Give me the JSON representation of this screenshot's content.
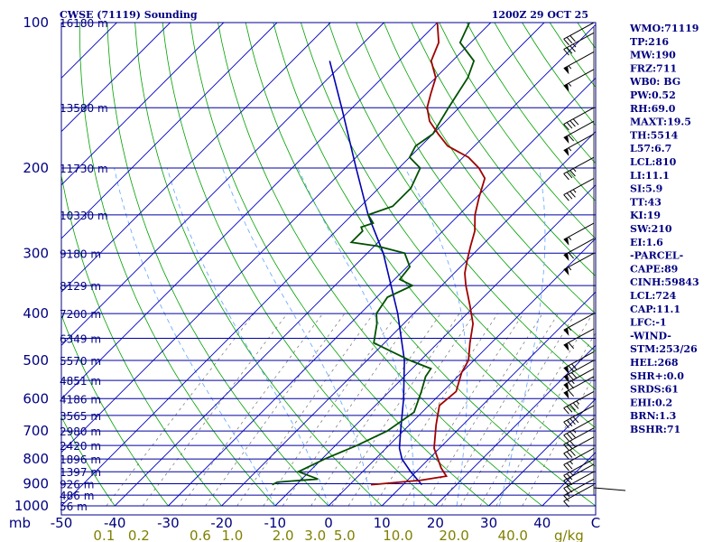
{
  "header": {
    "station": "CWSE (71119) Sounding",
    "time": "1200Z 29 OCT 25"
  },
  "chart_data": {
    "type": "skew-t log-p sounding",
    "pressure_axis": {
      "scale": "log",
      "range": [
        1000,
        100
      ],
      "ticks": [
        {
          "label": "100",
          "p": 100
        },
        {
          "label": "200",
          "p": 200
        },
        {
          "label": "300",
          "p": 300
        },
        {
          "label": "400",
          "p": 400
        },
        {
          "label": "500",
          "p": 500
        },
        {
          "label": "600",
          "p": 600
        },
        {
          "label": "700",
          "p": 700
        },
        {
          "label": "800",
          "p": 800
        },
        {
          "label": "900",
          "p": 900
        },
        {
          "label": "1000",
          "p": 1000
        },
        {
          "label": "mb",
          "p": 1000
        }
      ]
    },
    "temperature_axis": {
      "range": [
        -50,
        50
      ],
      "ticks": [
        {
          "label": "-50",
          "t": -50
        },
        {
          "label": "-40",
          "t": -40
        },
        {
          "label": "-30",
          "t": -30
        },
        {
          "label": "-20",
          "t": -20
        },
        {
          "label": "-10",
          "t": -10
        },
        {
          "label": "0",
          "t": 0
        },
        {
          "label": "10",
          "t": 10
        },
        {
          "label": "20",
          "t": 20
        },
        {
          "label": "30",
          "t": 30
        },
        {
          "label": "40",
          "t": 40
        },
        {
          "label": "C",
          "t": 50
        }
      ]
    },
    "mixing_ratio_labels": [
      {
        "label": "0.1",
        "t": -42
      },
      {
        "label": "0.2",
        "t": -35.5
      },
      {
        "label": "0.6",
        "t": -24
      },
      {
        "label": "1.0",
        "t": -18
      },
      {
        "label": "2.0",
        "t": -8.5
      },
      {
        "label": "3.0",
        "t": -2.5
      },
      {
        "label": "5.0",
        "t": 3
      },
      {
        "label": "10.0",
        "t": 13
      },
      {
        "label": "20.0",
        "t": 23.5
      },
      {
        "label": "40.0",
        "t": 34.5
      },
      {
        "label": "g/kg",
        "t": 45
      }
    ],
    "height_labels": [
      {
        "label": "16180 m",
        "p": 100
      },
      {
        "label": "13580 m",
        "p": 150
      },
      {
        "label": "11730 m",
        "p": 200
      },
      {
        "label": "10330 m",
        "p": 250
      },
      {
        "label": "9180 m",
        "p": 300
      },
      {
        "label": "8129 m",
        "p": 350
      },
      {
        "label": "7200 m",
        "p": 400
      },
      {
        "label": "6349 m",
        "p": 450
      },
      {
        "label": "5570 m",
        "p": 500
      },
      {
        "label": "4851 m",
        "p": 550
      },
      {
        "label": "4186 m",
        "p": 600
      },
      {
        "label": "3565 m",
        "p": 650
      },
      {
        "label": "2980 m",
        "p": 700
      },
      {
        "label": "2420 m",
        "p": 750
      },
      {
        "label": "1896 m",
        "p": 800
      },
      {
        "label": "1397 m",
        "p": 850
      },
      {
        "label": "926 m",
        "p": 900
      },
      {
        "label": "486 m",
        "p": 950
      },
      {
        "label": "56 m",
        "p": 1000
      }
    ],
    "temperature": [
      [
        904,
        4
      ],
      [
        885,
        12.5
      ],
      [
        868,
        16.5
      ],
      [
        835,
        14
      ],
      [
        760,
        9
      ],
      [
        680,
        5
      ],
      [
        620,
        2
      ],
      [
        580,
        2.5
      ],
      [
        530,
        0
      ],
      [
        500,
        -1
      ],
      [
        460,
        -4
      ],
      [
        420,
        -7
      ],
      [
        385,
        -11
      ],
      [
        350,
        -15.5
      ],
      [
        330,
        -18
      ],
      [
        310,
        -20
      ],
      [
        290,
        -22
      ],
      [
        270,
        -24
      ],
      [
        250,
        -27
      ],
      [
        230,
        -29.5
      ],
      [
        210,
        -32
      ],
      [
        200,
        -35
      ],
      [
        190,
        -39
      ],
      [
        180,
        -45
      ],
      [
        170,
        -49
      ],
      [
        160,
        -53
      ],
      [
        150,
        -56
      ],
      [
        140,
        -58
      ],
      [
        130,
        -60
      ],
      [
        120,
        -64
      ],
      [
        110,
        -66
      ],
      [
        100,
        -70
      ]
    ],
    "dewpoint": [
      [
        904,
        -14.5
      ],
      [
        893,
        -14
      ],
      [
        880,
        -7
      ],
      [
        850,
        -12
      ],
      [
        800,
        -9.5
      ],
      [
        750,
        -6
      ],
      [
        700,
        -3
      ],
      [
        640,
        -1.5
      ],
      [
        580,
        -4
      ],
      [
        540,
        -6
      ],
      [
        520,
        -6.5
      ],
      [
        500,
        -12
      ],
      [
        460,
        -22
      ],
      [
        420,
        -25
      ],
      [
        400,
        -27
      ],
      [
        370,
        -28
      ],
      [
        350,
        -25.5
      ],
      [
        340,
        -29
      ],
      [
        320,
        -29.5
      ],
      [
        300,
        -33
      ],
      [
        290,
        -39.5
      ],
      [
        285,
        -45
      ],
      [
        270,
        -45
      ],
      [
        265,
        -46
      ],
      [
        260,
        -44.5
      ],
      [
        250,
        -47
      ],
      [
        240,
        -44
      ],
      [
        220,
        -44
      ],
      [
        200,
        -46
      ],
      [
        190,
        -50
      ],
      [
        180,
        -51
      ],
      [
        170,
        -50
      ],
      [
        160,
        -51
      ],
      [
        150,
        -52
      ],
      [
        130,
        -54
      ],
      [
        120,
        -56
      ],
      [
        110,
        -62
      ],
      [
        100,
        -64
      ]
    ],
    "parcel": [
      [
        904,
        13.5
      ],
      [
        850,
        9
      ],
      [
        800,
        5
      ],
      [
        760,
        2.5
      ],
      [
        700,
        -0.5
      ],
      [
        600,
        -6
      ],
      [
        500,
        -13
      ],
      [
        400,
        -23
      ],
      [
        300,
        -37
      ],
      [
        250,
        -47
      ],
      [
        200,
        -58
      ],
      [
        150,
        -72
      ],
      [
        120,
        -83
      ]
    ],
    "winds": [
      {
        "p": 904,
        "spd": 10
      },
      {
        "p": 880,
        "spd": 15
      },
      {
        "p": 850,
        "spd": 20
      },
      {
        "p": 820,
        "spd": 20
      },
      {
        "p": 800,
        "spd": 25
      },
      {
        "p": 760,
        "spd": 25
      },
      {
        "p": 720,
        "spd": 30
      },
      {
        "p": 690,
        "spd": 30
      },
      {
        "p": 660,
        "spd": 35
      },
      {
        "p": 620,
        "spd": 40
      },
      {
        "p": 580,
        "spd": 45
      },
      {
        "p": 540,
        "spd": 60
      },
      {
        "p": 520,
        "spd": 65
      },
      {
        "p": 500,
        "spd": 70
      },
      {
        "p": 480,
        "spd": 70
      },
      {
        "p": 430,
        "spd": 60
      },
      {
        "p": 400,
        "spd": 55
      },
      {
        "p": 300,
        "spd": 55
      },
      {
        "p": 280,
        "spd": 60
      },
      {
        "p": 260,
        "spd": 55
      },
      {
        "p": 210,
        "spd": 35
      },
      {
        "p": 190,
        "spd": 35
      },
      {
        "p": 170,
        "spd": 55
      },
      {
        "p": 160,
        "spd": 60
      },
      {
        "p": 150,
        "spd": 40
      },
      {
        "p": 125,
        "spd": 55
      },
      {
        "p": 115,
        "spd": 55
      },
      {
        "p": 105,
        "spd": 35
      },
      {
        "p": 100,
        "spd": 30
      }
    ]
  },
  "indices": [
    "WMO:71119",
    "TP:216",
    "MW:190",
    "FRZ:711",
    "WB0: BG",
    "PW:0.52",
    "RH:69.0",
    "MAXT:19.5",
    "TH:5514",
    "L57:6.7",
    "LCL:810",
    "LI:11.1",
    "SI:5.9",
    "TT:43",
    "KI:19",
    "SW:210",
    "EI:1.6",
    "-PARCEL-",
    "CAPE:89",
    "CINH:59843",
    "LCL:724",
    "CAP:11.1",
    "LFC:-1",
    "-WIND-",
    "STM:253/26",
    "HEL:268",
    "SHR+:0.0",
    "SRDS:61",
    "EHI:0.2",
    "BRN:1.3",
    "BSHR:71"
  ],
  "colors": {
    "isobar": "#0000a0",
    "isotherm": "#0000c0",
    "dry_adiabat": "#00a000",
    "moist_adiabat": "#5fa5ff",
    "mixing_ratio": "#707070",
    "temperature": "#a00000",
    "dewpoint": "#005000",
    "parcel": "#0000b0",
    "text": "#000080"
  }
}
